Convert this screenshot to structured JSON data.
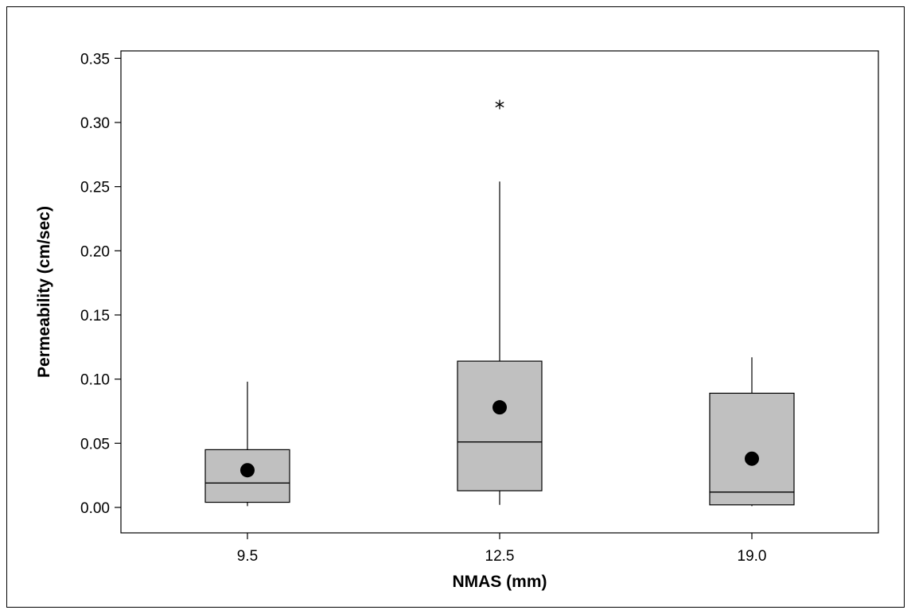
{
  "chart_data": {
    "type": "boxplot",
    "title": "",
    "xlabel": "NMAS (mm)",
    "ylabel": "Permeability (cm/sec)",
    "ylim": [
      -0.02,
      0.355
    ],
    "y_ticks": [
      "0.00",
      "0.05",
      "0.10",
      "0.15",
      "0.20",
      "0.25",
      "0.30",
      "0.35"
    ],
    "categories": [
      "9.5",
      "12.5",
      "19.0"
    ],
    "box_color": "#c0c0c0",
    "boxes": [
      {
        "category": "9.5",
        "whisker_low": 0.001,
        "q1": 0.004,
        "median": 0.019,
        "q3": 0.045,
        "whisker_high": 0.098,
        "mean": 0.029,
        "outliers": []
      },
      {
        "category": "12.5",
        "whisker_low": 0.002,
        "q1": 0.013,
        "median": 0.051,
        "q3": 0.114,
        "whisker_high": 0.254,
        "mean": 0.078,
        "outliers": [
          0.314
        ]
      },
      {
        "category": "19.0",
        "whisker_low": 0.001,
        "q1": 0.002,
        "median": 0.012,
        "q3": 0.089,
        "whisker_high": 0.117,
        "mean": 0.038,
        "outliers": []
      }
    ],
    "grid": false,
    "legend": "none"
  }
}
